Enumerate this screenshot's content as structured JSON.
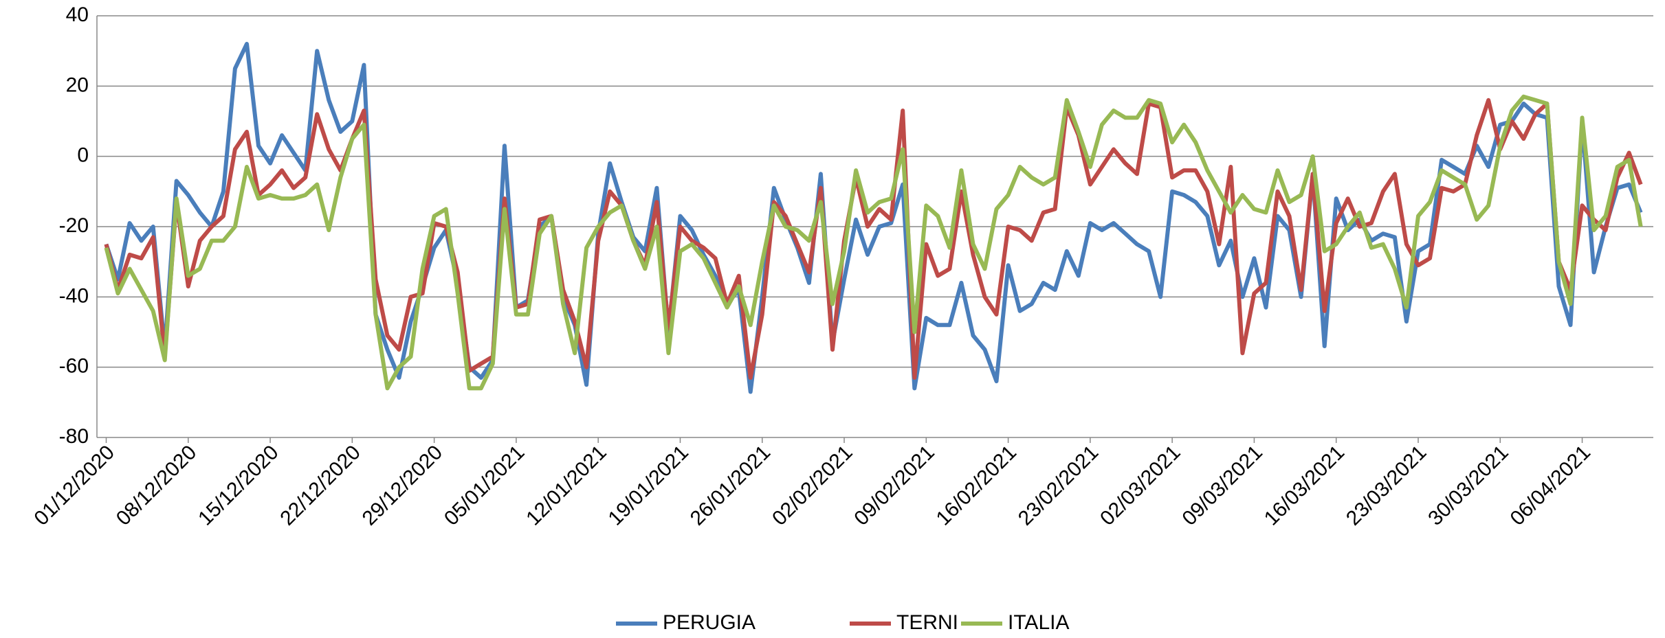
{
  "chart_data": {
    "type": "line",
    "categories": [
      "01/12/2020",
      null,
      null,
      null,
      null,
      null,
      null,
      "08/12/2020",
      null,
      null,
      null,
      null,
      null,
      null,
      "15/12/2020",
      null,
      null,
      null,
      null,
      null,
      null,
      "22/12/2020",
      null,
      null,
      null,
      null,
      null,
      null,
      "29/12/2020",
      null,
      null,
      null,
      null,
      null,
      null,
      "05/01/2021",
      null,
      null,
      null,
      null,
      null,
      null,
      "12/01/2021",
      null,
      null,
      null,
      null,
      null,
      null,
      "19/01/2021",
      null,
      null,
      null,
      null,
      null,
      null,
      "26/01/2021",
      null,
      null,
      null,
      null,
      null,
      null,
      "02/02/2021",
      null,
      null,
      null,
      null,
      null,
      null,
      "09/02/2021",
      null,
      null,
      null,
      null,
      null,
      null,
      "16/02/2021",
      null,
      null,
      null,
      null,
      null,
      null,
      "23/02/2021",
      null,
      null,
      null,
      null,
      null,
      null,
      "02/03/2021",
      null,
      null,
      null,
      null,
      null,
      null,
      "09/03/2021",
      null,
      null,
      null,
      null,
      null,
      null,
      "16/03/2021",
      null,
      null,
      null,
      null,
      null,
      null,
      "23/03/2021",
      null,
      null,
      null,
      null,
      null,
      null,
      "30/03/2021",
      null,
      null,
      null,
      null,
      null,
      null,
      "06/04/2021",
      null,
      null,
      null,
      null,
      null
    ],
    "series": [
      {
        "name": "PERUGIA",
        "color": "#4a7ebb",
        "values": [
          -25,
          -35,
          -19,
          -24,
          -20,
          -55,
          -7,
          -11,
          -16,
          -20,
          -10,
          25,
          32,
          3,
          -2,
          6,
          1,
          -4,
          30,
          16,
          7,
          10,
          26,
          -45,
          -55,
          -63,
          -47,
          -37,
          -26,
          -21,
          -36,
          -60,
          -63,
          -58,
          3,
          -43,
          -41,
          -20,
          -17,
          -40,
          -48,
          -65,
          -22,
          -2,
          -13,
          -23,
          -27,
          -9,
          -50,
          -17,
          -21,
          -28,
          -34,
          -42,
          -38,
          -67,
          -40,
          -9,
          -18,
          -26,
          -36,
          -5,
          -53,
          -35,
          -18,
          -28,
          -20,
          -19,
          -8,
          -66,
          -46,
          -48,
          -48,
          -36,
          -51,
          -55,
          -64,
          -31,
          -44,
          -42,
          -36,
          -38,
          -27,
          -34,
          -19,
          -21,
          -19,
          -22,
          -25,
          -27,
          -40,
          -10,
          -11,
          -13,
          -17,
          -31,
          -24,
          -40,
          -29,
          -43,
          -17,
          -21,
          -40,
          -5,
          -54,
          -12,
          -21,
          -18,
          -24,
          -22,
          -23,
          -47,
          -27,
          -25,
          -1,
          -3,
          -5,
          3,
          -3,
          9,
          10,
          15,
          12,
          11,
          -37,
          -48,
          10,
          -33,
          -20,
          -9,
          -8,
          -16
        ]
      },
      {
        "name": "TERNI",
        "color": "#be4b48",
        "values": [
          -25,
          -38,
          -28,
          -29,
          -23,
          -57,
          -13,
          -37,
          -24,
          -20,
          -17,
          2,
          7,
          -11,
          -8,
          -4,
          -9,
          -6,
          12,
          2,
          -4,
          5,
          13,
          -35,
          -51,
          -55,
          -40,
          -39,
          -19,
          -20,
          -33,
          -61,
          -59,
          -57,
          -12,
          -43,
          -42,
          -18,
          -17,
          -38,
          -47,
          -60,
          -24,
          -10,
          -14,
          -24,
          -31,
          -13,
          -49,
          -20,
          -24,
          -26,
          -29,
          -42,
          -34,
          -63,
          -45,
          -13,
          -17,
          -25,
          -33,
          -9,
          -55,
          -24,
          -6,
          -20,
          -15,
          -18,
          13,
          -63,
          -25,
          -34,
          -32,
          -10,
          -28,
          -40,
          -45,
          -20,
          -21,
          -24,
          -16,
          -15,
          14,
          6,
          -8,
          -3,
          2,
          -2,
          -5,
          15,
          14,
          -6,
          -4,
          -4,
          -10,
          -25,
          -3,
          -56,
          -39,
          -36,
          -10,
          -17,
          -38,
          -5,
          -44,
          -19,
          -12,
          -20,
          -19,
          -10,
          -5,
          -25,
          -31,
          -29,
          -9,
          -10,
          -8,
          6,
          16,
          2,
          10,
          5,
          12,
          15,
          -30,
          -38,
          -14,
          -18,
          -21,
          -6,
          1,
          -8
        ]
      },
      {
        "name": "ITALIA",
        "color": "#98b954",
        "values": [
          -26,
          -39,
          -32,
          -38,
          -44,
          -58,
          -12,
          -34,
          -32,
          -24,
          -24,
          -20,
          -3,
          -12,
          -11,
          -12,
          -12,
          -11,
          -8,
          -21,
          -6,
          5,
          9,
          -45,
          -66,
          -60,
          -57,
          -32,
          -17,
          -15,
          -39,
          -66,
          -66,
          -59,
          -15,
          -45,
          -45,
          -22,
          -17,
          -42,
          -56,
          -26,
          -20,
          -16,
          -14,
          -24,
          -32,
          -20,
          -56,
          -27,
          -25,
          -29,
          -36,
          -43,
          -37,
          -48,
          -30,
          -14,
          -20,
          -21,
          -24,
          -13,
          -42,
          -27,
          -4,
          -16,
          -13,
          -12,
          2,
          -50,
          -14,
          -17,
          -26,
          -4,
          -25,
          -32,
          -15,
          -11,
          -3,
          -6,
          -8,
          -6,
          16,
          7,
          -3,
          9,
          13,
          11,
          11,
          16,
          15,
          4,
          9,
          4,
          -4,
          -10,
          -16,
          -11,
          -15,
          -16,
          -4,
          -13,
          -11,
          0,
          -27,
          -25,
          -20,
          -16,
          -26,
          -25,
          -32,
          -43,
          -17,
          -13,
          -4,
          -6,
          -8,
          -18,
          -14,
          3,
          13,
          17,
          16,
          15,
          -30,
          -42,
          11,
          -21,
          -17,
          -3,
          -1,
          -20
        ]
      }
    ],
    "ylim": [
      -80,
      40
    ],
    "yticks": [
      -80,
      -60,
      -40,
      -20,
      0,
      20,
      40
    ],
    "grid": true,
    "legend": "bottom"
  }
}
